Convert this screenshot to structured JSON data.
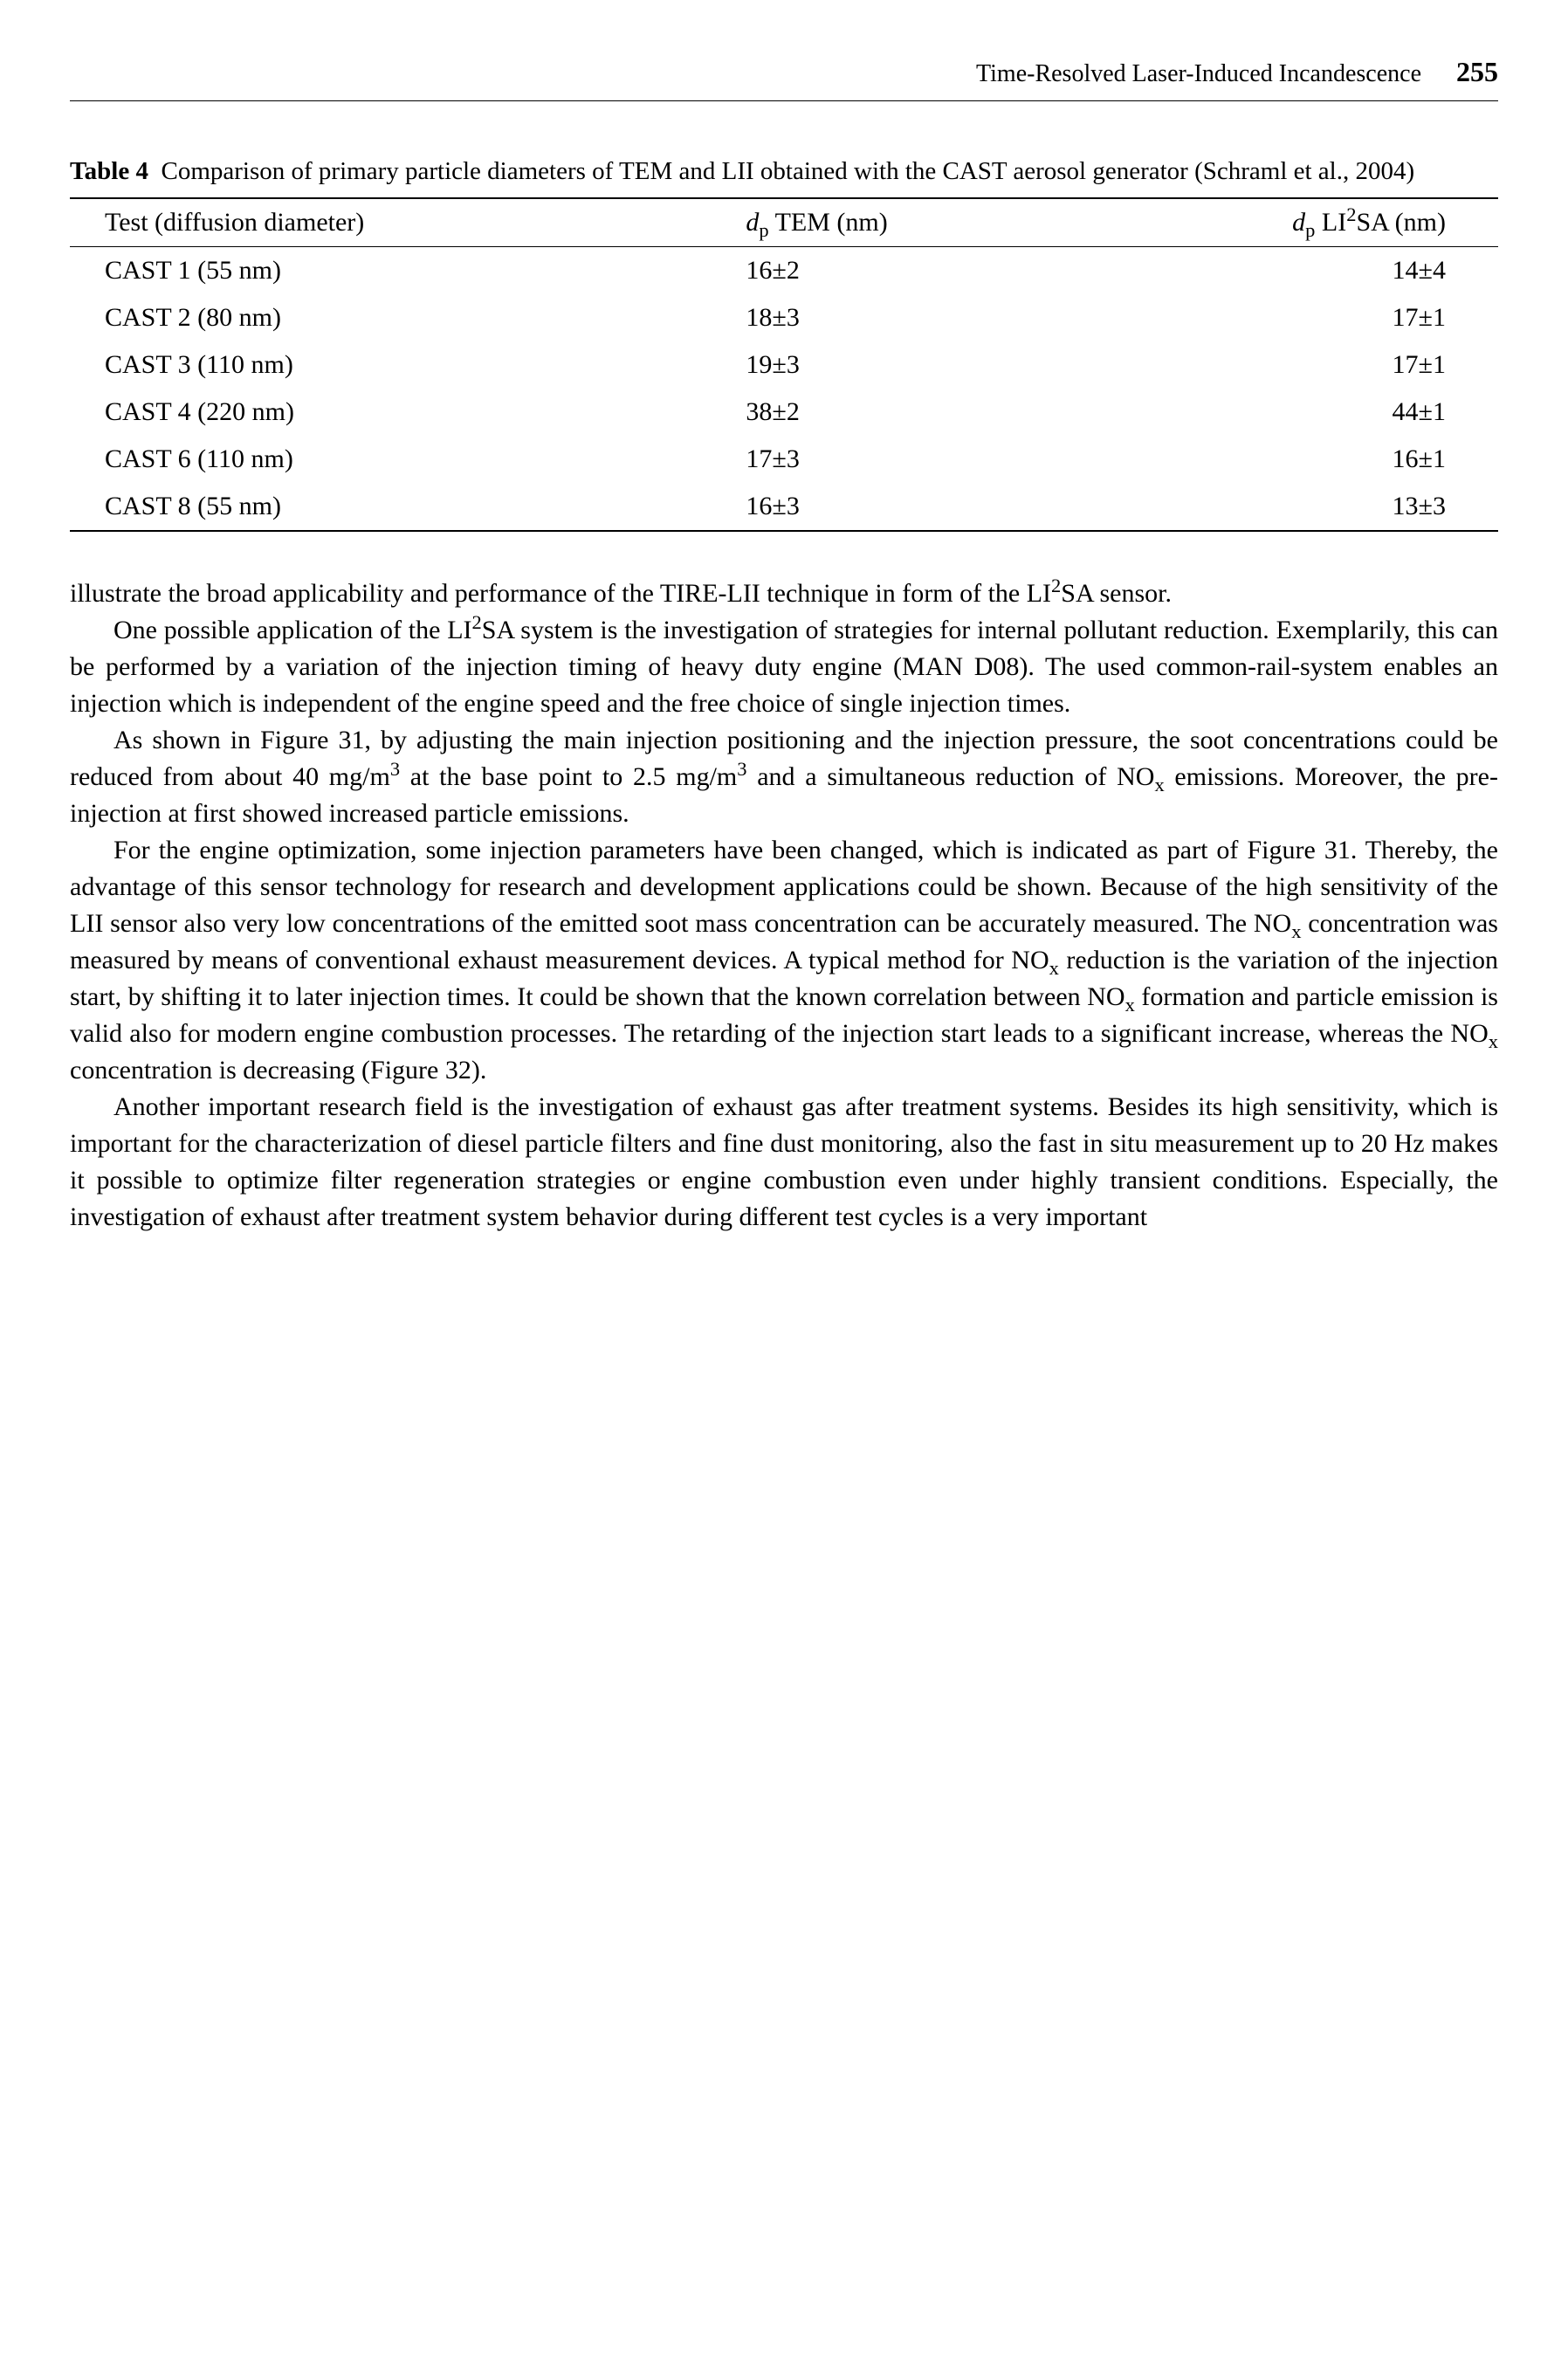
{
  "header": {
    "running_title": "Time-Resolved Laser-Induced Incandescence",
    "page_number": "255"
  },
  "table": {
    "type": "table",
    "caption_label": "Table 4",
    "caption_text": "Comparison of primary particle diameters of TEM and LII obtained with the CAST aerosol generator (Schraml et al., 2004)",
    "columns": [
      {
        "header_html": "Test (diffusion diameter)"
      },
      {
        "header_html": "<i>d</i><sub>p</sub> TEM (nm)"
      },
      {
        "header_html": "<i>d</i><sub>p</sub> LI<sup>2</sup>SA (nm)"
      }
    ],
    "rows": [
      [
        "CAST 1 (55 nm)",
        "16±2",
        "14±4"
      ],
      [
        "CAST 2 (80 nm)",
        "18±3",
        "17±1"
      ],
      [
        "CAST 3 (110 nm)",
        "19±3",
        "17±1"
      ],
      [
        "CAST 4 (220 nm)",
        "38±2",
        "44±1"
      ],
      [
        "CAST 6 (110 nm)",
        "17±3",
        "16±1"
      ],
      [
        "CAST 8 (55 nm)",
        "16±3",
        "13±3"
      ]
    ]
  },
  "paragraphs": {
    "p1": "illustrate the broad applicability and performance of the TIRE-LII technique in form of the LI<sup>2</sup>SA sensor.",
    "p2": "One possible application of the LI<sup>2</sup>SA system is the investigation of strategies for internal pollutant reduction. Exemplarily, this can be performed by a variation of the injection timing of heavy duty engine (MAN D08). The used common-rail-system enables an injection which is independent of the engine speed and the free choice of single injection times.",
    "p3": "As shown in Figure 31, by adjusting the main injection positioning and the injection pressure, the soot concentrations could be reduced from about 40 mg/m<sup>3</sup> at the base point to 2.5 mg/m<sup>3</sup> and a simultaneous reduction of NO<sub>x</sub> emissions. Moreover, the pre-injection at first showed increased particle emissions.",
    "p4": "For the engine optimization, some injection parameters have been changed, which is indicated as part of Figure 31. Thereby, the advantage of this sensor technology for research and development applications could be shown. Because of the high sensitivity of the LII sensor also very low concentrations of the emitted soot mass concentration can be accurately measured. The NO<sub>x</sub> concentration was measured by means of conventional exhaust measurement devices. A typical method for NO<sub>x</sub> reduction is the variation of the injection start, by shifting it to later injection times. It could be shown that the known correlation between NO<sub>x</sub> formation and particle emission is valid also for modern engine combustion processes. The retarding of the injection start leads to a significant increase, whereas the NO<sub>x</sub> concentration is decreasing (Figure 32).",
    "p5": "Another important research field is the investigation of exhaust gas after treatment systems. Besides its high sensitivity, which is important for the characterization of diesel particle filters and fine dust monitoring, also the fast in situ measurement up to 20 Hz makes it possible to optimize filter regeneration strategies or engine combustion even under highly transient conditions. Especially, the investigation of exhaust after treatment system behavior during different test cycles is a very important"
  }
}
